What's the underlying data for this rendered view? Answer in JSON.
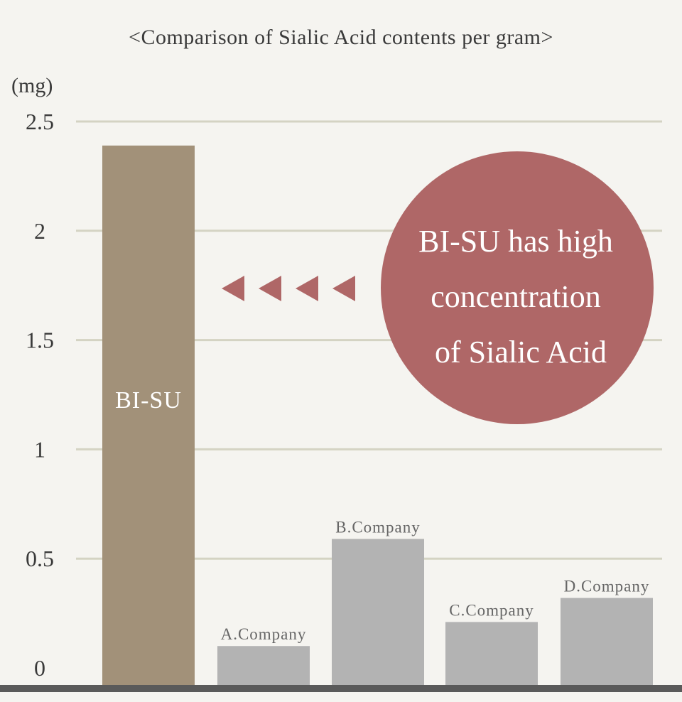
{
  "chart_data": {
    "type": "bar",
    "title": "<Comparison of Sialic Acid contents per gram>",
    "unit_label": "(mg)",
    "categories": [
      "BI-SU",
      "A.Company",
      "B.Company",
      "C.Company",
      "D.Company"
    ],
    "values": [
      2.39,
      0.1,
      0.59,
      0.21,
      0.32
    ],
    "ylim": [
      0,
      2.5
    ],
    "yticks": [
      0,
      0.5,
      1,
      1.5,
      2,
      2.5
    ],
    "ytick_labels": [
      "0",
      "0.5",
      "1",
      "1.5",
      "2",
      "2.5"
    ],
    "grid": true,
    "bar_colors": [
      "#a29179",
      "#b3b3b3",
      "#b3b3b3",
      "#b3b3b3",
      "#b3b3b3"
    ],
    "highlight_label": "BI-SU",
    "callout": {
      "lines": [
        "BI-SU has high",
        "concentration",
        "of Sialic Acid"
      ],
      "color": "#af6767"
    },
    "arrow_color": "#af6767",
    "gridline_color": "#d4d3c3",
    "baseline_color": "#5a5a5a"
  }
}
